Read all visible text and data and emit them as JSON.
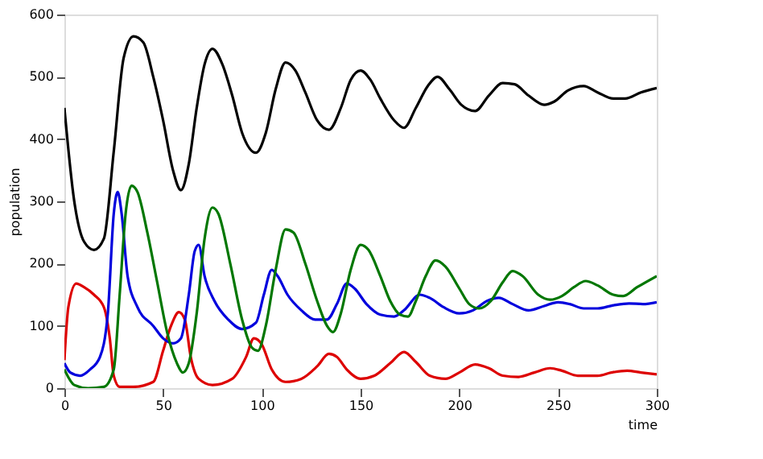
{
  "chart_data": {
    "type": "line",
    "xlabel": "time",
    "ylabel": "population",
    "xlim": [
      0,
      300
    ],
    "xticks": [
      0,
      50,
      100,
      150,
      200,
      250,
      300
    ],
    "ylim": [
      0,
      600
    ],
    "yticks": [
      0,
      100,
      200,
      300,
      400,
      500,
      600
    ],
    "grid": false,
    "legend": false,
    "marker": "none",
    "line_style": "solid",
    "series": [
      {
        "color": "#000000",
        "x": [
          0,
          5,
          10,
          15,
          20,
          25,
          30,
          35,
          40,
          45,
          50,
          55,
          59,
          63,
          67,
          71,
          75,
          80,
          85,
          90,
          97,
          102,
          107,
          112,
          117,
          122,
          128,
          134,
          140,
          145,
          150,
          155,
          160,
          167,
          172,
          178,
          184,
          189,
          195,
          201,
          208,
          215,
          222,
          228,
          235,
          243,
          248,
          255,
          263,
          270,
          278,
          284,
          292,
          300
        ],
        "values": [
          450,
          300,
          235,
          222,
          240,
          380,
          530,
          565,
          555,
          500,
          430,
          350,
          318,
          360,
          450,
          520,
          545,
          520,
          470,
          410,
          378,
          410,
          480,
          523,
          510,
          475,
          430,
          415,
          450,
          495,
          510,
          495,
          465,
          430,
          418,
          450,
          485,
          500,
          480,
          455,
          445,
          470,
          490,
          488,
          470,
          455,
          460,
          478,
          485,
          475,
          465,
          465,
          475,
          482
        ]
      },
      {
        "color": "#dd0000",
        "x": [
          0,
          2,
          6,
          10,
          15,
          20,
          23,
          25,
          28,
          35,
          45,
          50,
          54,
          58,
          61,
          64,
          68,
          75,
          85,
          92,
          96,
          100,
          105,
          112,
          120,
          128,
          134,
          138,
          143,
          150,
          157,
          165,
          172,
          178,
          185,
          193,
          200,
          208,
          215,
          222,
          230,
          238,
          246,
          252,
          260,
          270,
          277,
          285,
          292,
          300
        ],
        "values": [
          45,
          130,
          168,
          162,
          150,
          130,
          80,
          20,
          2,
          2,
          10,
          60,
          100,
          122,
          110,
          50,
          15,
          5,
          15,
          50,
          80,
          70,
          30,
          10,
          15,
          35,
          55,
          50,
          30,
          15,
          20,
          40,
          58,
          42,
          20,
          15,
          25,
          38,
          32,
          20,
          18,
          25,
          32,
          28,
          20,
          20,
          25,
          28,
          25,
          22
        ]
      },
      {
        "color": "#0000dd",
        "x": [
          0,
          3,
          8,
          13,
          18,
          22,
          25,
          27,
          29,
          32,
          37,
          45,
          50,
          55,
          59,
          63,
          66,
          68,
          71,
          76,
          83,
          90,
          97,
          101,
          105,
          108,
          113,
          120,
          127,
          133,
          138,
          143,
          147,
          153,
          160,
          167,
          172,
          180,
          185,
          192,
          200,
          207,
          214,
          220,
          227,
          235,
          243,
          250,
          256,
          263,
          270,
          278,
          286,
          293,
          300
        ],
        "values": [
          40,
          25,
          20,
          30,
          50,
          120,
          280,
          315,
          280,
          180,
          130,
          100,
          80,
          72,
          80,
          150,
          220,
          230,
          180,
          140,
          110,
          95,
          105,
          150,
          190,
          180,
          150,
          125,
          110,
          110,
          135,
          168,
          160,
          135,
          118,
          115,
          125,
          150,
          145,
          130,
          120,
          125,
          140,
          145,
          135,
          125,
          132,
          138,
          135,
          128,
          128,
          133,
          136,
          135,
          138
        ]
      },
      {
        "color": "#007700",
        "x": [
          0,
          5,
          12,
          20,
          25,
          28,
          31,
          34,
          37,
          42,
          47,
          52,
          57,
          60,
          63,
          67,
          71,
          75,
          78,
          84,
          90,
          95,
          98,
          102,
          107,
          112,
          116,
          122,
          128,
          133,
          136,
          140,
          145,
          150,
          154,
          160,
          165,
          170,
          174,
          178,
          183,
          188,
          193,
          200,
          205,
          210,
          216,
          222,
          227,
          232,
          240,
          246,
          252,
          258,
          264,
          270,
          278,
          283,
          290,
          300
        ],
        "values": [
          30,
          5,
          0,
          2,
          30,
          150,
          280,
          325,
          315,
          250,
          170,
          90,
          40,
          25,
          40,
          120,
          240,
          290,
          280,
          200,
          110,
          65,
          60,
          100,
          190,
          255,
          250,
          200,
          140,
          100,
          90,
          120,
          190,
          230,
          222,
          180,
          140,
          118,
          115,
          140,
          180,
          205,
          195,
          160,
          135,
          128,
          140,
          170,
          188,
          180,
          150,
          142,
          148,
          162,
          172,
          165,
          150,
          148,
          162,
          180
        ]
      }
    ]
  }
}
